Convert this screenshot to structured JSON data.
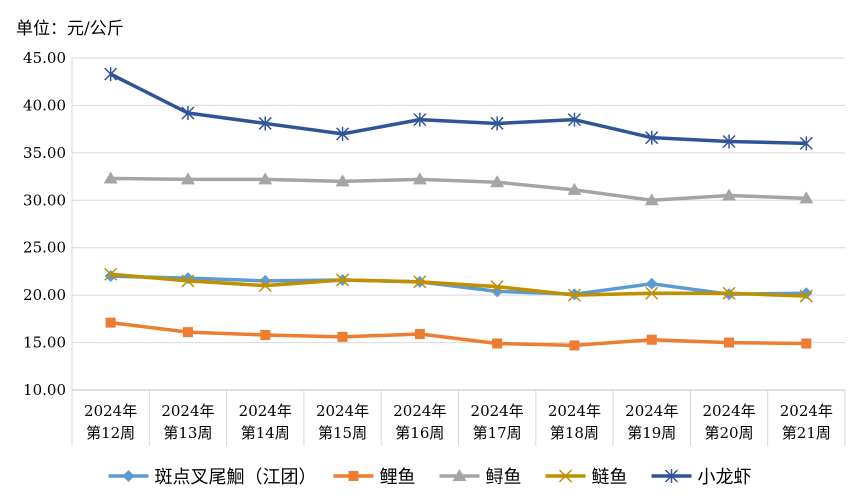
{
  "chart_data": {
    "type": "line",
    "unit_label": "单位：元/公斤",
    "categories": [
      [
        "2024年",
        "第12周"
      ],
      [
        "2024年",
        "第13周"
      ],
      [
        "2024年",
        "第14周"
      ],
      [
        "2024年",
        "第15周"
      ],
      [
        "2024年",
        "第16周"
      ],
      [
        "2024年",
        "第17周"
      ],
      [
        "2024年",
        "第18周"
      ],
      [
        "2024年",
        "第19周"
      ],
      [
        "2024年",
        "第20周"
      ],
      [
        "2024年",
        "第21周"
      ]
    ],
    "ylim": [
      10,
      45
    ],
    "yticks": [
      "10.00",
      "15.00",
      "20.00",
      "25.00",
      "30.00",
      "35.00",
      "40.00",
      "45.00"
    ],
    "grid": true,
    "legend_position": "bottom",
    "series": [
      {
        "name": "斑点叉尾鮰（江团）",
        "color": "#5b9bd5",
        "marker": "diamond",
        "values": [
          22.0,
          21.8,
          21.5,
          21.6,
          21.4,
          20.4,
          20.1,
          21.2,
          20.1,
          20.2
        ]
      },
      {
        "name": "鲤鱼",
        "color": "#ed7d31",
        "marker": "square",
        "values": [
          17.1,
          16.1,
          15.8,
          15.6,
          15.9,
          14.9,
          14.7,
          15.3,
          15.0,
          14.9
        ]
      },
      {
        "name": "鲟鱼",
        "color": "#a5a5a5",
        "marker": "triangle",
        "values": [
          32.3,
          32.2,
          32.2,
          32.0,
          32.2,
          31.9,
          31.1,
          30.0,
          30.5,
          30.2
        ]
      },
      {
        "name": "鲢鱼",
        "color": "#bf9000",
        "marker": "x",
        "values": [
          22.2,
          21.5,
          21.0,
          21.6,
          21.4,
          20.9,
          20.0,
          20.2,
          20.2,
          19.9
        ]
      },
      {
        "name": "小龙虾",
        "color": "#2f5597",
        "marker": "star",
        "values": [
          43.3,
          39.2,
          38.1,
          37.0,
          38.5,
          38.1,
          38.5,
          36.6,
          36.2,
          36.0
        ]
      }
    ]
  }
}
